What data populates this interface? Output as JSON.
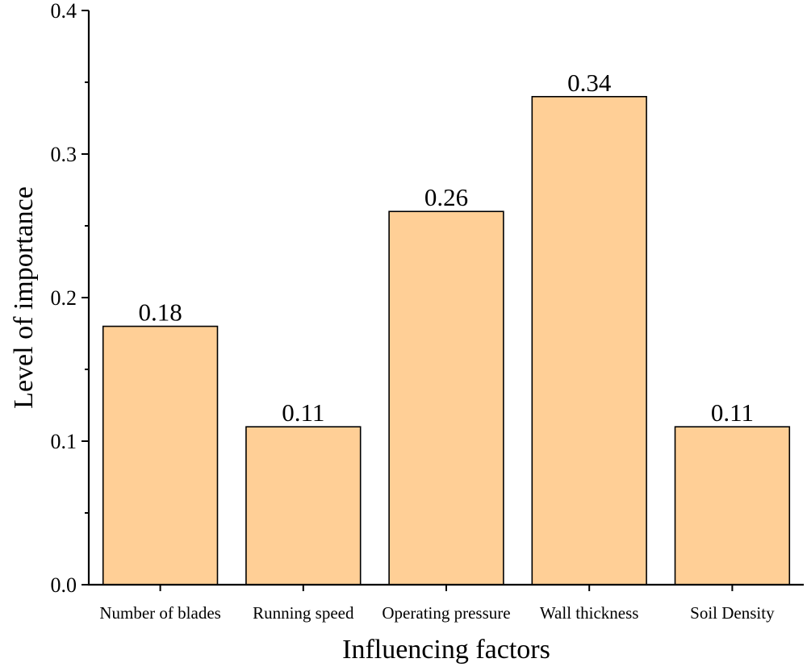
{
  "chart_data": {
    "type": "bar",
    "categories": [
      "Number of blades",
      "Running speed",
      "Operating pressure",
      "Wall thickness",
      "Soil Density"
    ],
    "values": [
      0.18,
      0.11,
      0.26,
      0.34,
      0.11
    ],
    "data_labels": [
      "0.18",
      "0.11",
      "0.26",
      "0.34",
      "0.11"
    ],
    "title": "",
    "xlabel": "Influencing factors",
    "ylabel": "Level of importance",
    "ylim": [
      0,
      0.4
    ],
    "yticks": [
      0,
      0.1,
      0.2,
      0.3,
      0.4
    ],
    "ytick_labels": [
      "0.0",
      "0.1",
      "0.2",
      "0.3",
      "0.4"
    ],
    "grid": false,
    "bar_color": "#FFCF96"
  }
}
